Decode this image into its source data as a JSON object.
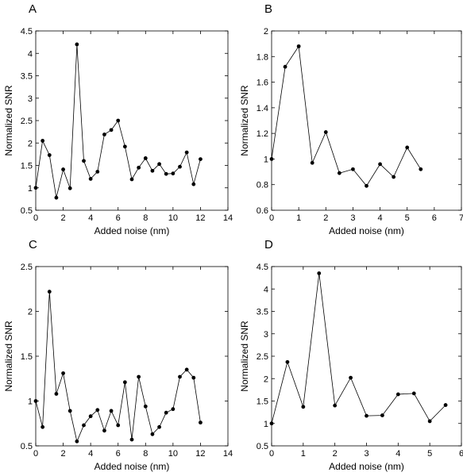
{
  "chart_data": [
    {
      "panel": "A",
      "type": "line",
      "xlabel": "Added noise (nm)",
      "ylabel": "Normalized SNR",
      "xlim": [
        0,
        14
      ],
      "ylim": [
        0.5,
        4.5
      ],
      "xticks": [
        0,
        2,
        4,
        6,
        8,
        10,
        12,
        14
      ],
      "xtick_labels": [
        "0",
        "2",
        "4",
        "6",
        "8",
        "10",
        "12",
        "14"
      ],
      "yticks": [
        0.5,
        1,
        1.5,
        2,
        2.5,
        3,
        3.5,
        4,
        4.5
      ],
      "ytick_labels": [
        "0.5",
        "1",
        "1.5",
        "2",
        "2.5",
        "3",
        "3.5",
        "4",
        "4.5"
      ],
      "series": [
        {
          "x": [
            0,
            0.5,
            1,
            1.5,
            2,
            2.5,
            3,
            3.5,
            4,
            4.5,
            5,
            5.5,
            6,
            6.5,
            7,
            7.5,
            8,
            8.5,
            9,
            9.5,
            10,
            10.5,
            11,
            11.5,
            12
          ],
          "y": [
            1.0,
            2.05,
            1.73,
            0.78,
            1.41,
            0.99,
            4.2,
            1.6,
            1.2,
            1.36,
            2.19,
            2.29,
            2.5,
            1.92,
            1.19,
            1.45,
            1.66,
            1.38,
            1.53,
            1.31,
            1.32,
            1.47,
            1.79,
            1.08,
            1.64
          ]
        }
      ]
    },
    {
      "panel": "B",
      "type": "line",
      "xlabel": "Added noise (nm)",
      "ylabel": "Normalized SNR",
      "xlim": [
        0,
        7
      ],
      "ylim": [
        0.6,
        2
      ],
      "xticks": [
        0,
        1,
        2,
        3,
        4,
        5,
        6,
        7
      ],
      "xtick_labels": [
        "0",
        "1",
        "2",
        "3",
        "4",
        "5",
        "6",
        "7"
      ],
      "yticks": [
        0.6,
        0.8,
        1,
        1.2,
        1.4,
        1.6,
        1.8,
        2
      ],
      "ytick_labels": [
        "0.6",
        "0.8",
        "1",
        "1.2",
        "1.4",
        "1.6",
        "1.8",
        "2"
      ],
      "series": [
        {
          "x": [
            0,
            0.5,
            1,
            1.5,
            2,
            2.5,
            3,
            3.5,
            4,
            4.5,
            5,
            5.5
          ],
          "y": [
            1.0,
            1.72,
            1.88,
            0.97,
            1.21,
            0.89,
            0.92,
            0.79,
            0.96,
            0.86,
            1.09,
            0.92
          ]
        }
      ]
    },
    {
      "panel": "C",
      "type": "line",
      "xlabel": "Added noise (nm)",
      "ylabel": "Normalized SNR",
      "xlim": [
        0,
        14
      ],
      "ylim": [
        0.5,
        2.5
      ],
      "xticks": [
        0,
        2,
        4,
        6,
        8,
        10,
        12,
        14
      ],
      "xtick_labels": [
        "0",
        "2",
        "4",
        "6",
        "8",
        "10",
        "12",
        "14"
      ],
      "yticks": [
        0.5,
        1,
        1.5,
        2,
        2.5
      ],
      "ytick_labels": [
        "0.5",
        "1",
        "1.5",
        "2",
        "2.5"
      ],
      "series": [
        {
          "x": [
            0,
            0.5,
            1,
            1.5,
            2,
            2.5,
            3,
            3.5,
            4,
            4.5,
            5,
            5.5,
            6,
            6.5,
            7,
            7.5,
            8,
            8.5,
            9,
            9.5,
            10,
            10.5,
            11,
            11.5,
            12
          ],
          "y": [
            1.0,
            0.71,
            2.22,
            1.08,
            1.31,
            0.89,
            0.55,
            0.73,
            0.83,
            0.9,
            0.67,
            0.89,
            0.73,
            1.21,
            0.57,
            1.27,
            0.94,
            0.63,
            0.71,
            0.87,
            0.91,
            1.27,
            1.35,
            1.26,
            0.76
          ]
        }
      ]
    },
    {
      "panel": "D",
      "type": "line",
      "xlabel": "Added noise (nm)",
      "ylabel": "Normalized SNR",
      "xlim": [
        0,
        6
      ],
      "ylim": [
        0.5,
        4.5
      ],
      "xticks": [
        0,
        1,
        2,
        3,
        4,
        5,
        6
      ],
      "xtick_labels": [
        "0",
        "1",
        "2",
        "3",
        "4",
        "5",
        "6"
      ],
      "yticks": [
        0.5,
        1,
        1.5,
        2,
        2.5,
        3,
        3.5,
        4,
        4.5
      ],
      "ytick_labels": [
        "0.5",
        "1",
        "1.5",
        "2",
        "2.5",
        "3",
        "3.5",
        "4",
        "4.5"
      ],
      "series": [
        {
          "x": [
            0,
            0.5,
            1,
            1.5,
            2,
            2.5,
            3,
            3.5,
            4,
            4.5,
            5,
            5.5
          ],
          "y": [
            1.0,
            2.37,
            1.37,
            4.35,
            1.4,
            2.02,
            1.17,
            1.18,
            1.65,
            1.67,
            1.05,
            1.41
          ]
        }
      ]
    }
  ]
}
